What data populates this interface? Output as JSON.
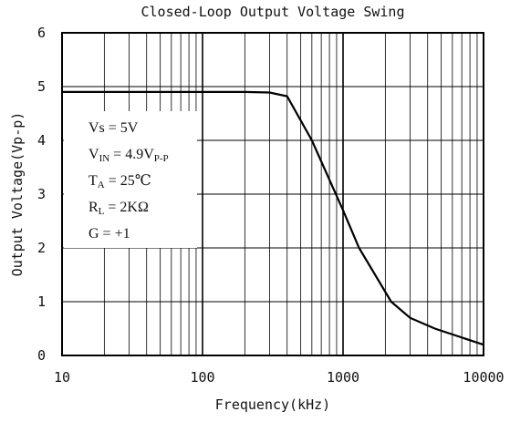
{
  "chart_data": {
    "type": "line",
    "title": "Closed-Loop Output Voltage Swing",
    "xlabel": "Frequency(kHz)",
    "ylabel": "Output Voltage(Vp-p)",
    "xscale": "log",
    "x": [
      10,
      50,
      100,
      200,
      300,
      400,
      600,
      1000,
      1300,
      2200,
      3000,
      4500,
      10000
    ],
    "series": [
      {
        "color": "#000000",
        "values": [
          4.9,
          4.9,
          4.9,
          4.9,
          4.89,
          4.82,
          4.0,
          2.7,
          2.0,
          1.0,
          0.7,
          0.5,
          0.2
        ]
      }
    ],
    "xlim": [
      10,
      10000
    ],
    "xticks": [
      10,
      100,
      1000,
      10000
    ],
    "xminor": [
      20,
      30,
      40,
      50,
      60,
      70,
      80,
      90,
      200,
      300,
      400,
      500,
      600,
      700,
      800,
      900,
      2000,
      3000,
      4000,
      5000,
      6000,
      7000,
      8000,
      9000
    ],
    "ylim": [
      0,
      6
    ],
    "yticks": [
      0,
      1,
      2,
      3,
      4,
      5,
      6
    ],
    "grid": true,
    "annotations": [
      [
        {
          "text": "Vs = 5V"
        }
      ],
      [
        {
          "text": "V"
        },
        {
          "text": "IN",
          "sub": true
        },
        {
          "text": " = 4.9V"
        },
        {
          "text": "P-P",
          "sub": true
        }
      ],
      [
        {
          "text": "T"
        },
        {
          "text": "A",
          "sub": true
        },
        {
          "text": " = 25℃"
        }
      ],
      [
        {
          "text": "R"
        },
        {
          "text": "L",
          "sub": true
        },
        {
          "text": " = 2KΩ"
        }
      ],
      [
        {
          "text": "G = +1"
        }
      ]
    ]
  }
}
